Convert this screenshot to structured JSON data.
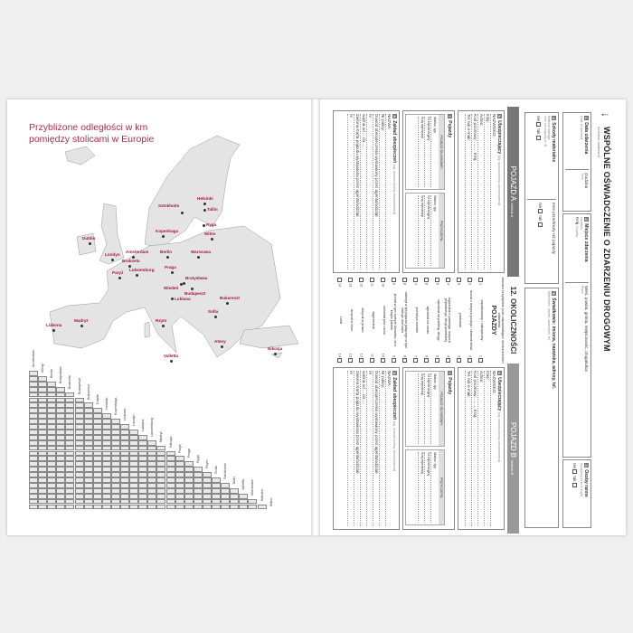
{
  "map_page": {
    "title_line1": "Przybliżone odległości w km",
    "title_line2": "pomiędzy stolicami w Europie",
    "accent_color": "#b02a4a",
    "cities": [
      "Helsinki",
      "Sztokholm",
      "Tallin",
      "Ryga",
      "Wilno",
      "Kopenhaga",
      "Dublin",
      "Londyn",
      "Amsterdam",
      "Berlin",
      "Warszawa",
      "Bruksela",
      "Luksemburg",
      "Paryż",
      "Praga",
      "Bratysława",
      "Wiedeń",
      "Budapeszt",
      "Lublana",
      "Bukareszt",
      "Sofia",
      "Madryt",
      "Lizbona",
      "Rzym",
      "Ateny",
      "Nikozja",
      "Valletta"
    ],
    "table_columns": [
      "Amsterdam",
      "Ateny",
      "Berlin",
      "Bratysława",
      "Bruksela",
      "Budapeszt",
      "Bukareszt",
      "Dublin",
      "Helsinki",
      "Kopenhaga",
      "Lizbona",
      "Londyn",
      "Lublana",
      "Luksemburg",
      "Madryt",
      "Nikozja",
      "Paryż",
      "Praga",
      "Ryga",
      "Rzym",
      "Sofia",
      "Sztokholm",
      "Tallin",
      "Valletta",
      "Warszawa",
      "Wiedeń",
      "Wilno"
    ]
  },
  "form": {
    "title": "WSPÓLNE OŚWIADCZENIE O ZDARZENIU DROGOWYM",
    "subtitle": "Accident statement",
    "box1": {
      "num": "1",
      "label": "Data zdarzenia",
      "sub": "Date of accident",
      "time": "Godzina",
      "time_sub": "Time"
    },
    "box2": {
      "num": "2",
      "label": "Miejsce zdarzenia",
      "sub": "Location",
      "country": "Kraj",
      "country_sub": "Country",
      "place": "Wieś, powiat, gmina, miejscowość, droga/ulica",
      "place_sub": "Place"
    },
    "box3": {
      "num": "3",
      "label": "Osoby ranne",
      "sub": "Injury(ies) even if slight",
      "no": "nie",
      "yes": "tak"
    },
    "box4": {
      "num": "4",
      "label": "Szkody materialne",
      "sub": "Material damage",
      "veh": "inne niż pojazdy A i B",
      "other": "Inne przedmioty niż pojazdy",
      "no": "nie",
      "yes": "tak"
    },
    "box5": {
      "num": "5",
      "label": "Świadkowie: imiona, nazwiska, adresy, tel.",
      "sub": "Witnesses: names, addresses, tel."
    },
    "vehicle_a": "POJAZD A",
    "vehicle_a_sub": "Vehicle A",
    "vehicle_b": "POJAZD B",
    "vehicle_b_sub": "Vehicle B",
    "circumstances": "12. OKOLICZNOŚCI",
    "circ_intro": "zaznacz krzyżykiem pola odpowiadające okolicznościom zdarzenia",
    "circ_vehicles": "POJAZDY",
    "circ_items": [
      "zaparkowany / zatrzymany",
      "ruszał z miejsca postoju / otwierał drzwi",
      "parkował",
      "wyjeżdżał z parkingu, miejsca prywatnego, drogi gruntowej",
      "wjeżdżał na parking, drogę",
      "wjeżdżał na rondo",
      "jechał po rondzie",
      "uderzył w tył pojazdu jadącego w tym samym kierunku",
      "jechał w tym samym kierunku, lecz innym pasem",
      "zmieniał pas ruchu",
      "wyprzedzał",
      "skręcał w prawo",
      "skręcał w lewo",
      "cofał"
    ],
    "vehicle_section": {
      "s6": "6",
      "s6_label": "Ubezpieczający",
      "s6_hint": "(wg. dowodu/polisy ubezpieczenia)",
      "name": "NAZWISKO:",
      "first": "Imię:",
      "address": "Adres:",
      "postcode": "Kod pocztowy:",
      "country": "Kraj:",
      "phone": "Tel. lub e-mail:",
      "s7": "7",
      "s7_label": "Pojazdy",
      "motor": "POJAZD SILNIKOWY",
      "trailer": "PRZYCZEPA",
      "make": "Marka, typ",
      "reg": "Nr rejestracyjny",
      "reg_country": "Kraj rejestracji",
      "s8": "8",
      "s8_label": "Zakład ubezpieczeń",
      "s8_hint": "(wg. dowodu/polisy ubezpieczenia)",
      "ins_name": "NAZWA:",
      "policy": "Nr polisy:",
      "green": "Dowód ubezpieczenia wystawiony przez agenta/oddział",
      "valid": "ważna od ... do ...",
      "card": "Zielona Karta pojazdu wystawiona przez agenta/oddział",
      "nr": "nr"
    }
  }
}
